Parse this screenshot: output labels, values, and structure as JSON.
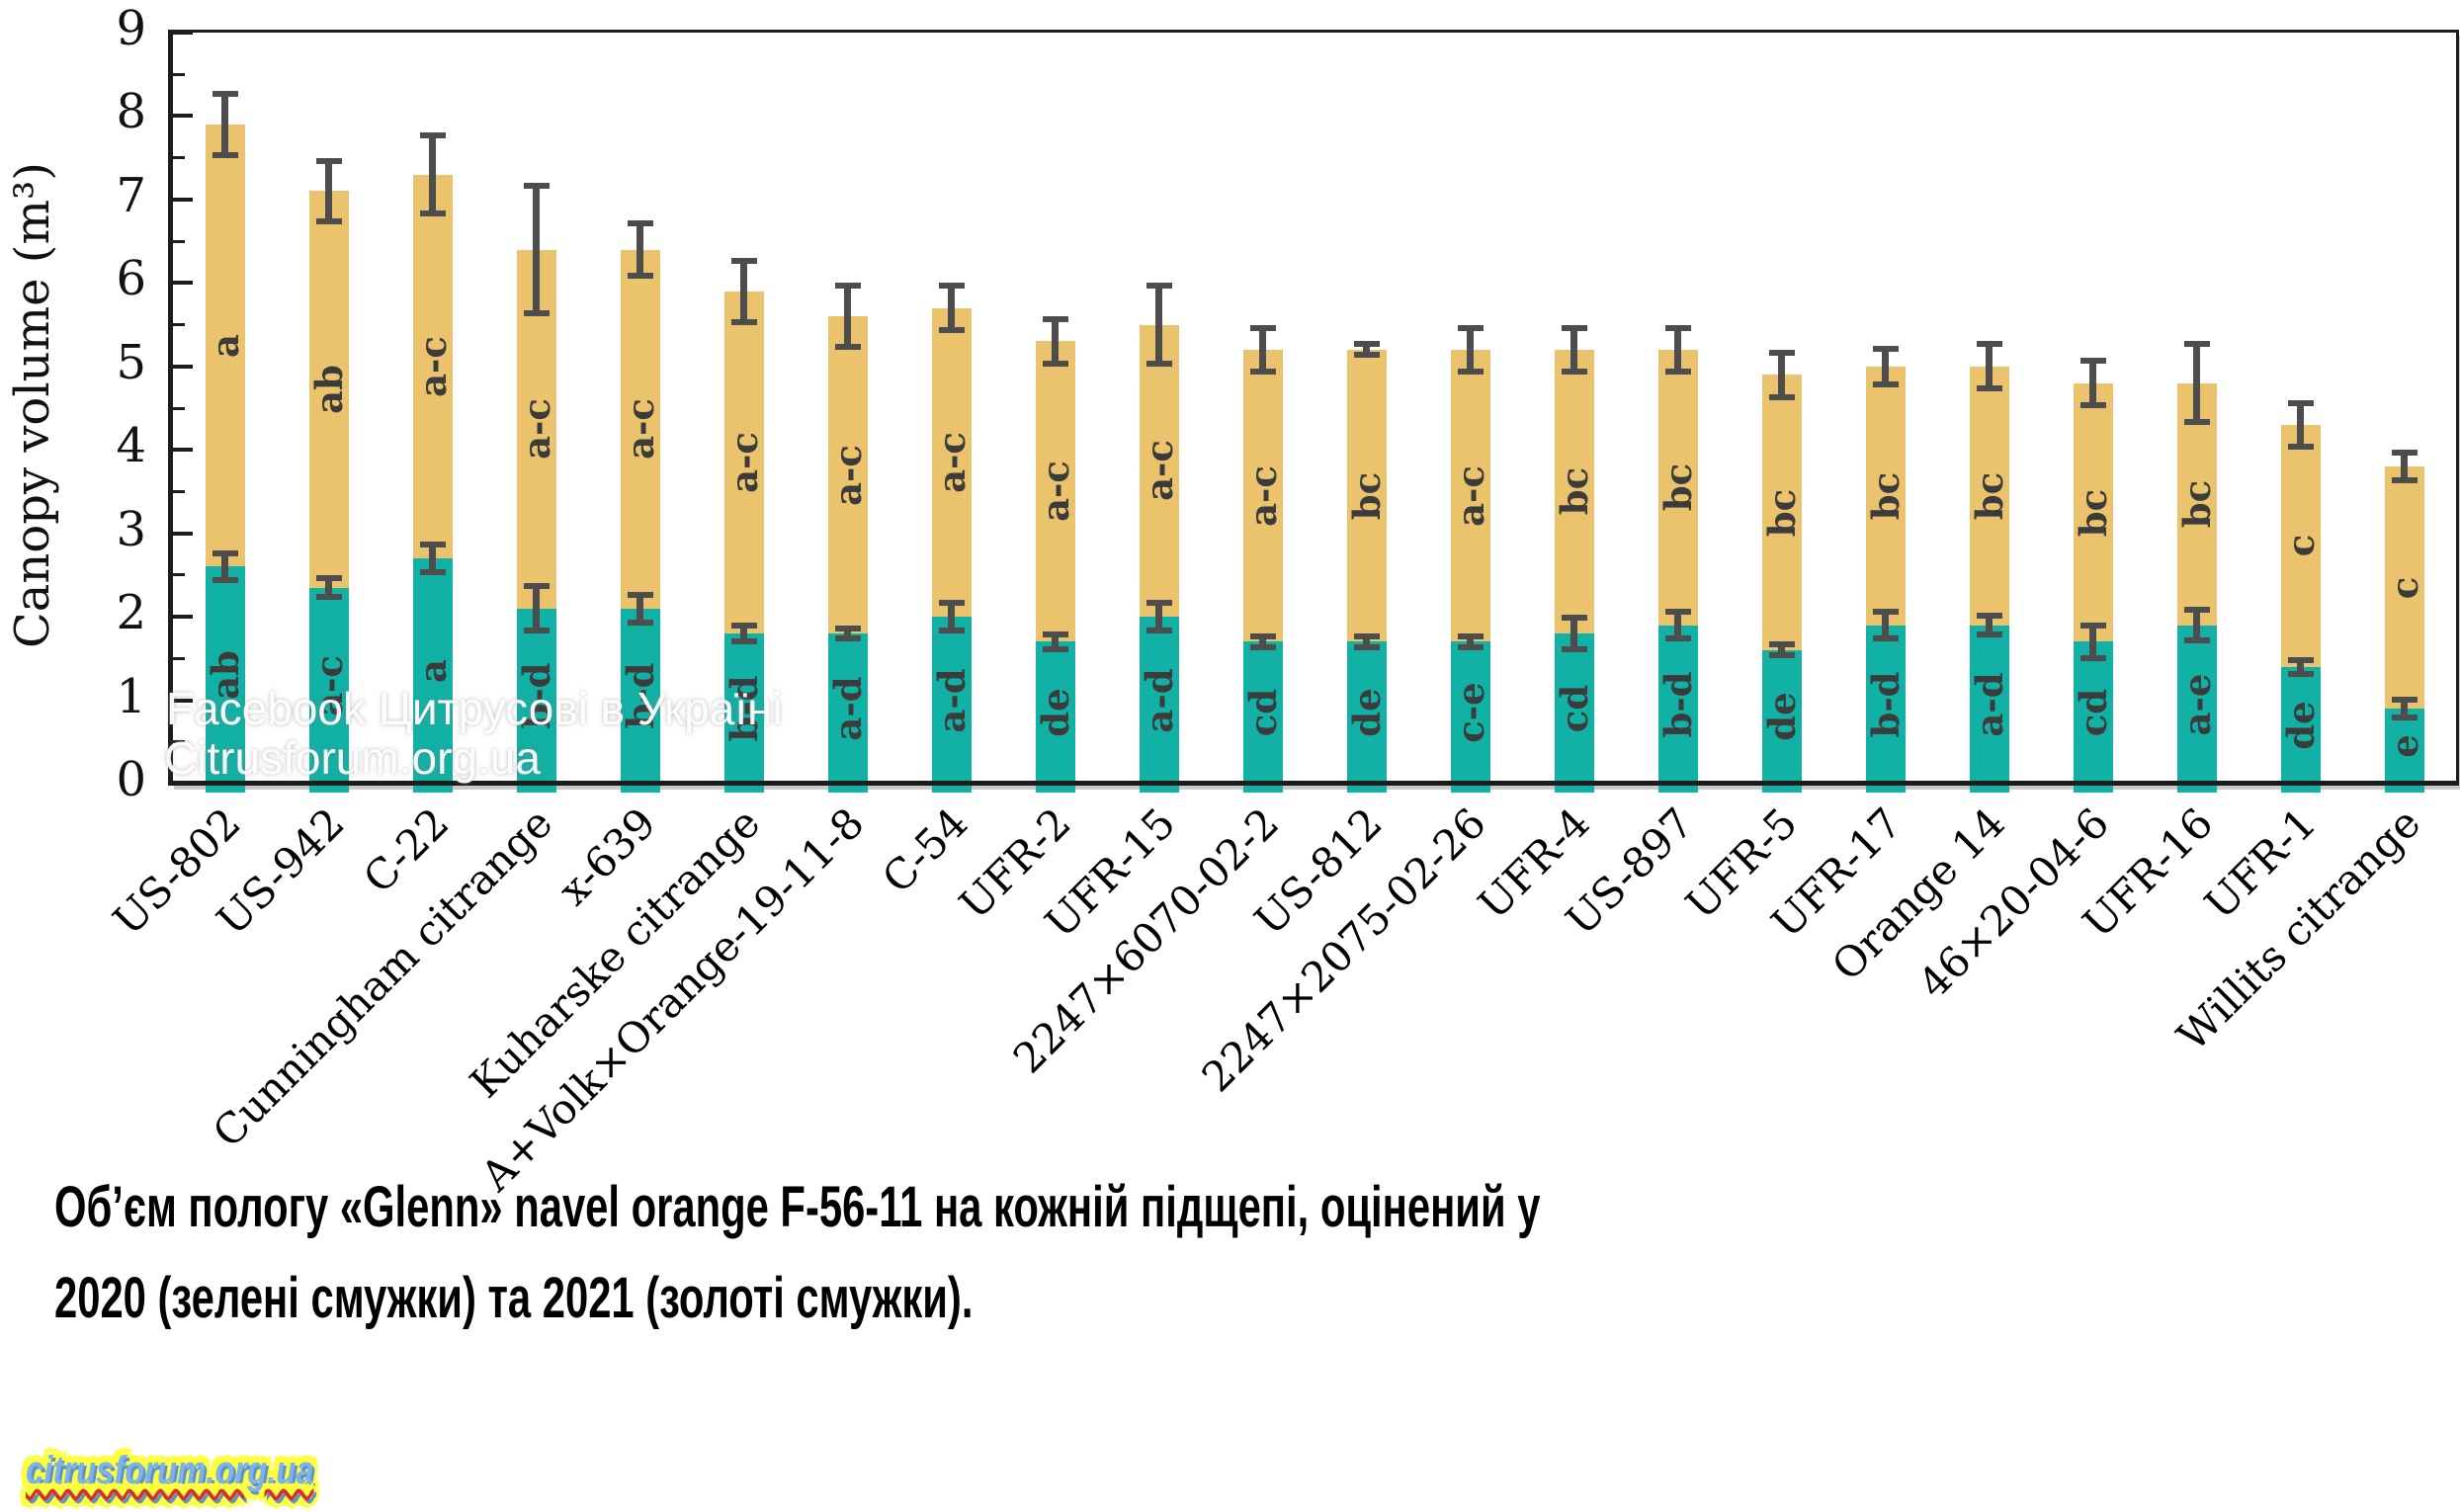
{
  "caption": {
    "line1": "Об’єм пологу «Glenn» navel orange F-56-11 на кожній підщепі, оцінений у",
    "line2": "2020 (зелені смужки) та 2021 (золоті смужки)."
  },
  "watermarks": {
    "center_line1": "Facebook Цитрусові в Україні",
    "center_line2": "Citrusforum.org.ua",
    "badge": "citrusforum.org.ua"
  },
  "chart_data": {
    "type": "bar",
    "title": "",
    "xlabel": "",
    "ylabel": "Canopy volume (m³)",
    "ylim": [
      0,
      9
    ],
    "ytick_step": 1,
    "yminor_step": 0.5,
    "yticks": [
      0,
      1,
      2,
      3,
      4,
      5,
      6,
      7,
      8,
      9
    ],
    "grid": false,
    "legend_position": "none",
    "colors": {
      "series_2020": "#12b1a5",
      "series_2021": "#ecc36d",
      "error_bar": "#4d4d4d",
      "axis": "#1c1c1c",
      "letter_label": "#3b3b3b"
    },
    "series": [
      {
        "name": "2020 (зелені смужки)",
        "color": "#12b1a5"
      },
      {
        "name": "2021 (золоті смужки)",
        "color": "#ecc36d"
      }
    ],
    "bars": [
      {
        "label": "US-802",
        "y2020": 2.6,
        "e2020": 0.2,
        "letter2020": "ab",
        "y2021": 7.9,
        "e2021": 0.4,
        "letter2021": "a"
      },
      {
        "label": "US-942",
        "y2020": 2.35,
        "e2020": 0.15,
        "letter2020": "a-c",
        "y2021": 7.1,
        "e2021": 0.4,
        "letter2021": "ab"
      },
      {
        "label": "C-22",
        "y2020": 2.7,
        "e2020": 0.2,
        "letter2020": "a",
        "y2021": 7.3,
        "e2021": 0.5,
        "letter2021": "a-c"
      },
      {
        "label": "Cunningham citrange",
        "y2020": 2.1,
        "e2020": 0.3,
        "letter2020": "b-d",
        "y2021": 6.4,
        "e2021": 0.8,
        "letter2021": "a-c"
      },
      {
        "label": "x-639",
        "y2020": 2.1,
        "e2020": 0.2,
        "letter2020": "b-d",
        "y2021": 6.4,
        "e2021": 0.35,
        "letter2021": "a-c"
      },
      {
        "label": "Kuharske citrange",
        "y2020": 1.8,
        "e2020": 0.13,
        "letter2020": "b-d",
        "y2021": 5.9,
        "e2021": 0.4,
        "letter2021": "a-c"
      },
      {
        "label": "A+Volk×Orange-19-11-8",
        "y2020": 1.8,
        "e2020": 0.1,
        "letter2020": "a-d",
        "y2021": 5.6,
        "e2021": 0.4,
        "letter2021": "a-c"
      },
      {
        "label": "C-54",
        "y2020": 2.0,
        "e2020": 0.2,
        "letter2020": "a-d",
        "y2021": 5.7,
        "e2021": 0.3,
        "letter2021": "a-c"
      },
      {
        "label": "UFR-2",
        "y2020": 1.7,
        "e2020": 0.12,
        "letter2020": "de",
        "y2021": 5.3,
        "e2021": 0.3,
        "letter2021": "a-c"
      },
      {
        "label": "UFR-15",
        "y2020": 2.0,
        "e2020": 0.2,
        "letter2020": "a-d",
        "y2021": 5.5,
        "e2021": 0.5,
        "letter2021": "a-c"
      },
      {
        "label": "2247×6070-02-2",
        "y2020": 1.7,
        "e2020": 0.1,
        "letter2020": "cd",
        "y2021": 5.2,
        "e2021": 0.3,
        "letter2021": "a-c"
      },
      {
        "label": "US-812",
        "y2020": 1.7,
        "e2020": 0.1,
        "letter2020": "de",
        "y2021": 5.2,
        "e2021": 0.1,
        "letter2021": "bc"
      },
      {
        "label": "2247×2075-02-26",
        "y2020": 1.7,
        "e2020": 0.1,
        "letter2020": "c-e",
        "y2021": 5.2,
        "e2021": 0.3,
        "letter2021": "a-c"
      },
      {
        "label": "UFR-4",
        "y2020": 1.8,
        "e2020": 0.22,
        "letter2020": "cd",
        "y2021": 5.2,
        "e2021": 0.3,
        "letter2021": "bc"
      },
      {
        "label": "US-897",
        "y2020": 1.9,
        "e2020": 0.2,
        "letter2020": "b-d",
        "y2021": 5.2,
        "e2021": 0.3,
        "letter2021": "bc"
      },
      {
        "label": "UFR-5",
        "y2020": 1.6,
        "e2020": 0.1,
        "letter2020": "de",
        "y2021": 4.9,
        "e2021": 0.3,
        "letter2021": "bc"
      },
      {
        "label": "UFR-17",
        "y2020": 1.9,
        "e2020": 0.2,
        "letter2020": "b-d",
        "y2021": 5.0,
        "e2021": 0.25,
        "letter2021": "bc"
      },
      {
        "label": "Orange 14",
        "y2020": 1.9,
        "e2020": 0.15,
        "letter2020": "a-d",
        "y2021": 5.0,
        "e2021": 0.3,
        "letter2021": "bc"
      },
      {
        "label": "46×20-04-6",
        "y2020": 1.7,
        "e2020": 0.23,
        "letter2020": "cd",
        "y2021": 4.8,
        "e2021": 0.3,
        "letter2021": "bc"
      },
      {
        "label": "UFR-16",
        "y2020": 1.9,
        "e2020": 0.22,
        "letter2020": "a-e",
        "y2021": 4.8,
        "e2021": 0.5,
        "letter2021": "bc"
      },
      {
        "label": "UFR-1",
        "y2020": 1.4,
        "e2020": 0.12,
        "letter2020": "de",
        "y2021": 4.3,
        "e2021": 0.3,
        "letter2021": "c"
      },
      {
        "label": "Willits citrange",
        "y2020": 0.9,
        "e2020": 0.14,
        "letter2020": "e",
        "y2021": 3.8,
        "e2021": 0.2,
        "letter2021": "c"
      }
    ]
  }
}
